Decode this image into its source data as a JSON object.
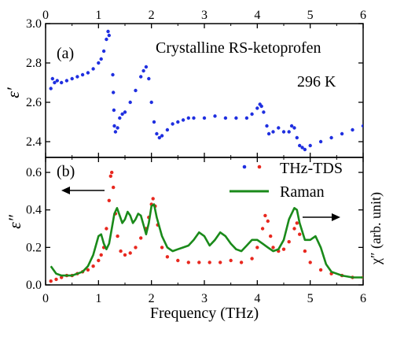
{
  "chart_data": [
    {
      "type": "scatter",
      "panel_label": "(a)",
      "annotation_title": "Crystalline RS-ketoprofen",
      "annotation_temp": "296 K",
      "ylabel": "ε′",
      "xlabel": "",
      "xlim": [
        0,
        6
      ],
      "ylim": [
        2.32,
        3.0
      ],
      "x_ticks": [
        "0",
        "1",
        "2",
        "3",
        "4",
        "5",
        "6"
      ],
      "y_ticks": [
        "2.4",
        "2.6",
        "2.8",
        "3.0"
      ],
      "series": [
        {
          "color": "#1f2fe0",
          "points": [
            [
              0.1,
              2.67
            ],
            [
              0.13,
              2.72
            ],
            [
              0.17,
              2.7
            ],
            [
              0.22,
              2.71
            ],
            [
              0.3,
              2.7
            ],
            [
              0.4,
              2.71
            ],
            [
              0.5,
              2.72
            ],
            [
              0.6,
              2.73
            ],
            [
              0.7,
              2.74
            ],
            [
              0.8,
              2.75
            ],
            [
              0.9,
              2.77
            ],
            [
              1.0,
              2.8
            ],
            [
              1.05,
              2.82
            ],
            [
              1.1,
              2.86
            ],
            [
              1.15,
              2.92
            ],
            [
              1.18,
              2.96
            ],
            [
              1.2,
              2.94
            ],
            [
              1.27,
              2.74
            ],
            [
              1.28,
              2.65
            ],
            [
              1.29,
              2.56
            ],
            [
              1.3,
              2.48
            ],
            [
              1.32,
              2.45
            ],
            [
              1.36,
              2.47
            ],
            [
              1.4,
              2.52
            ],
            [
              1.45,
              2.54
            ],
            [
              1.5,
              2.55
            ],
            [
              1.6,
              2.6
            ],
            [
              1.7,
              2.66
            ],
            [
              1.8,
              2.73
            ],
            [
              1.85,
              2.76
            ],
            [
              1.9,
              2.78
            ],
            [
              1.95,
              2.72
            ],
            [
              2.0,
              2.6
            ],
            [
              2.05,
              2.5
            ],
            [
              2.1,
              2.44
            ],
            [
              2.15,
              2.42
            ],
            [
              2.2,
              2.43
            ],
            [
              2.3,
              2.46
            ],
            [
              2.4,
              2.49
            ],
            [
              2.5,
              2.5
            ],
            [
              2.6,
              2.51
            ],
            [
              2.7,
              2.52
            ],
            [
              2.8,
              2.52
            ],
            [
              3.0,
              2.52
            ],
            [
              3.2,
              2.53
            ],
            [
              3.4,
              2.52
            ],
            [
              3.6,
              2.52
            ],
            [
              3.8,
              2.52
            ],
            [
              3.9,
              2.54
            ],
            [
              4.0,
              2.57
            ],
            [
              4.05,
              2.59
            ],
            [
              4.08,
              2.58
            ],
            [
              4.12,
              2.55
            ],
            [
              4.18,
              2.48
            ],
            [
              4.22,
              2.44
            ],
            [
              4.3,
              2.45
            ],
            [
              4.4,
              2.47
            ],
            [
              4.5,
              2.45
            ],
            [
              4.6,
              2.45
            ],
            [
              4.65,
              2.48
            ],
            [
              4.7,
              2.47
            ],
            [
              4.75,
              2.42
            ],
            [
              4.8,
              2.38
            ],
            [
              4.85,
              2.37
            ],
            [
              4.9,
              2.36
            ],
            [
              5.0,
              2.38
            ],
            [
              5.2,
              2.4
            ],
            [
              5.4,
              2.42
            ],
            [
              5.6,
              2.44
            ],
            [
              5.8,
              2.46
            ],
            [
              6.0,
              2.48
            ]
          ]
        }
      ]
    },
    {
      "type": "line",
      "panel_label": "(b)",
      "ylabel": "ε″",
      "right_ylabel": "χ″ (arb. unit)",
      "xlabel": "Frequency (THz)",
      "xlim": [
        0,
        6
      ],
      "ylim": [
        0,
        0.68
      ],
      "x_ticks": [
        "0",
        "1",
        "2",
        "3",
        "4",
        "5",
        "6"
      ],
      "y_ticks": [
        "0.0",
        "0.2",
        "0.4",
        "0.6"
      ],
      "legend_position": "top-right",
      "series": [
        {
          "name": "THz-TDS",
          "style": "dots",
          "color": "#e8281f",
          "legend_color": "#1f2fe0",
          "points": [
            [
              0.1,
              0.02
            ],
            [
              0.2,
              0.03
            ],
            [
              0.3,
              0.04
            ],
            [
              0.4,
              0.05
            ],
            [
              0.5,
              0.05
            ],
            [
              0.6,
              0.06
            ],
            [
              0.7,
              0.07
            ],
            [
              0.8,
              0.08
            ],
            [
              0.9,
              0.1
            ],
            [
              1.0,
              0.13
            ],
            [
              1.05,
              0.16
            ],
            [
              1.1,
              0.2
            ],
            [
              1.15,
              0.3
            ],
            [
              1.2,
              0.45
            ],
            [
              1.23,
              0.58
            ],
            [
              1.25,
              0.6
            ],
            [
              1.28,
              0.52
            ],
            [
              1.32,
              0.38
            ],
            [
              1.36,
              0.26
            ],
            [
              1.42,
              0.18
            ],
            [
              1.5,
              0.16
            ],
            [
              1.6,
              0.17
            ],
            [
              1.7,
              0.2
            ],
            [
              1.8,
              0.25
            ],
            [
              1.9,
              0.3
            ],
            [
              1.95,
              0.36
            ],
            [
              2.0,
              0.43
            ],
            [
              2.03,
              0.46
            ],
            [
              2.07,
              0.42
            ],
            [
              2.12,
              0.32
            ],
            [
              2.2,
              0.2
            ],
            [
              2.3,
              0.15
            ],
            [
              2.5,
              0.13
            ],
            [
              2.7,
              0.12
            ],
            [
              2.9,
              0.12
            ],
            [
              3.1,
              0.12
            ],
            [
              3.3,
              0.12
            ],
            [
              3.5,
              0.13
            ],
            [
              3.7,
              0.12
            ],
            [
              3.9,
              0.14
            ],
            [
              4.0,
              0.2
            ],
            [
              4.1,
              0.3
            ],
            [
              4.15,
              0.37
            ],
            [
              4.2,
              0.34
            ],
            [
              4.25,
              0.26
            ],
            [
              4.3,
              0.2
            ],
            [
              4.4,
              0.18
            ],
            [
              4.5,
              0.19
            ],
            [
              4.6,
              0.23
            ],
            [
              4.7,
              0.3
            ],
            [
              4.75,
              0.33
            ],
            [
              4.8,
              0.27
            ],
            [
              4.9,
              0.18
            ],
            [
              5.0,
              0.12
            ],
            [
              5.2,
              0.08
            ],
            [
              5.4,
              0.06
            ],
            [
              5.6,
              0.05
            ],
            [
              5.8,
              0.04
            ],
            [
              6.0,
              0.04
            ]
          ]
        },
        {
          "name": "Raman",
          "style": "line",
          "color": "#1a8a1a",
          "points": [
            [
              0.1,
              0.1
            ],
            [
              0.2,
              0.06
            ],
            [
              0.3,
              0.05
            ],
            [
              0.4,
              0.05
            ],
            [
              0.5,
              0.05
            ],
            [
              0.6,
              0.06
            ],
            [
              0.7,
              0.07
            ],
            [
              0.8,
              0.1
            ],
            [
              0.9,
              0.16
            ],
            [
              1.0,
              0.26
            ],
            [
              1.05,
              0.27
            ],
            [
              1.1,
              0.22
            ],
            [
              1.15,
              0.19
            ],
            [
              1.2,
              0.22
            ],
            [
              1.25,
              0.3
            ],
            [
              1.3,
              0.38
            ],
            [
              1.35,
              0.41
            ],
            [
              1.4,
              0.37
            ],
            [
              1.45,
              0.33
            ],
            [
              1.5,
              0.35
            ],
            [
              1.55,
              0.39
            ],
            [
              1.6,
              0.37
            ],
            [
              1.65,
              0.33
            ],
            [
              1.7,
              0.35
            ],
            [
              1.75,
              0.38
            ],
            [
              1.8,
              0.37
            ],
            [
              1.85,
              0.32
            ],
            [
              1.9,
              0.27
            ],
            [
              1.95,
              0.33
            ],
            [
              2.0,
              0.42
            ],
            [
              2.05,
              0.43
            ],
            [
              2.1,
              0.36
            ],
            [
              2.2,
              0.26
            ],
            [
              2.3,
              0.2
            ],
            [
              2.4,
              0.18
            ],
            [
              2.5,
              0.19
            ],
            [
              2.6,
              0.2
            ],
            [
              2.7,
              0.21
            ],
            [
              2.8,
              0.24
            ],
            [
              2.9,
              0.28
            ],
            [
              3.0,
              0.26
            ],
            [
              3.1,
              0.21
            ],
            [
              3.2,
              0.24
            ],
            [
              3.3,
              0.28
            ],
            [
              3.4,
              0.26
            ],
            [
              3.5,
              0.22
            ],
            [
              3.6,
              0.19
            ],
            [
              3.7,
              0.18
            ],
            [
              3.8,
              0.21
            ],
            [
              3.9,
              0.24
            ],
            [
              4.0,
              0.24
            ],
            [
              4.1,
              0.22
            ],
            [
              4.2,
              0.2
            ],
            [
              4.3,
              0.18
            ],
            [
              4.4,
              0.19
            ],
            [
              4.5,
              0.24
            ],
            [
              4.6,
              0.35
            ],
            [
              4.7,
              0.41
            ],
            [
              4.75,
              0.4
            ],
            [
              4.8,
              0.33
            ],
            [
              4.9,
              0.24
            ],
            [
              5.0,
              0.24
            ],
            [
              5.1,
              0.26
            ],
            [
              5.2,
              0.2
            ],
            [
              5.3,
              0.11
            ],
            [
              5.4,
              0.07
            ],
            [
              5.6,
              0.05
            ],
            [
              5.8,
              0.04
            ],
            [
              6.0,
              0.04
            ]
          ]
        }
      ]
    }
  ]
}
